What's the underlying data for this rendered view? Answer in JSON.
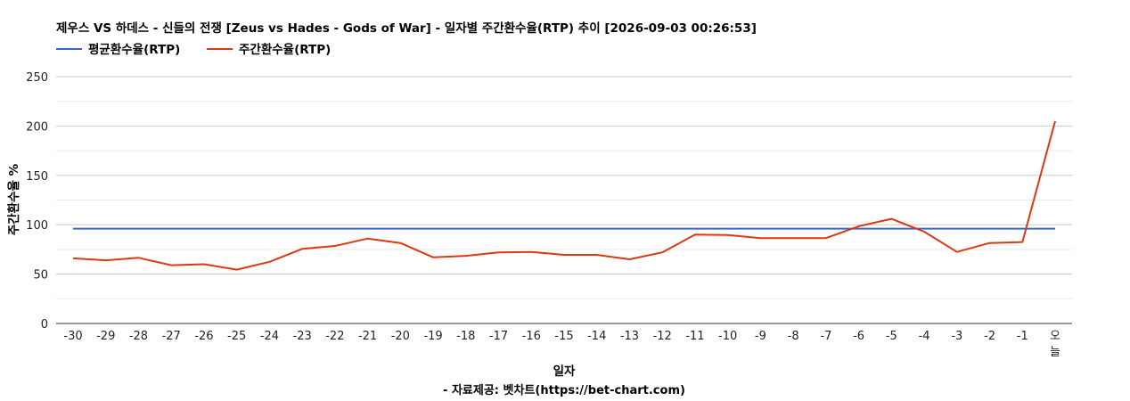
{
  "chart_data": {
    "type": "line",
    "title": "제우스 VS 하데스 - 신들의 전쟁 [Zeus vs Hades - Gods of War] - 일자별 주간환수율(RTP) 추이 [2026-09-03 00:26:53]",
    "xlabel": "일자",
    "ylabel": "주간환수율 %",
    "source": "- 자료제공: 벳차트(https://bet-chart.com)",
    "legend_position": "top-left",
    "grid": true,
    "ylim": [
      0,
      250
    ],
    "yticks": [
      "0",
      "50",
      "100",
      "150",
      "200",
      "250"
    ],
    "categories": [
      "-30",
      "-29",
      "-28",
      "-27",
      "-26",
      "-25",
      "-24",
      "-23",
      "-22",
      "-21",
      "-20",
      "-19",
      "-18",
      "-17",
      "-16",
      "-15",
      "-14",
      "-13",
      "-12",
      "-11",
      "-10",
      "-9",
      "-8",
      "-7",
      "-6",
      "-5",
      "-4",
      "-3",
      "-2",
      "-1",
      "오늘"
    ],
    "series": [
      {
        "name": "평균환수율(RTP)",
        "color": "#3366cc",
        "values": [
          96,
          96,
          96,
          96,
          96,
          96,
          96,
          96,
          96,
          96,
          96,
          96,
          96,
          96,
          96,
          96,
          96,
          96,
          96,
          96,
          96,
          96,
          96,
          96,
          96,
          96,
          96,
          96,
          96,
          96,
          96
        ]
      },
      {
        "name": "주간환수율(RTP)",
        "color": "#dc3912",
        "values": [
          66,
          64,
          66.5,
          59,
          60,
          54.5,
          62.5,
          75.5,
          78.5,
          86,
          81.5,
          67,
          68.5,
          72,
          72.5,
          69.5,
          69.5,
          65,
          72,
          90,
          89.5,
          86.5,
          86.5,
          86.5,
          98.5,
          106,
          93,
          72.5,
          81.5,
          82.5,
          205
        ]
      }
    ]
  }
}
